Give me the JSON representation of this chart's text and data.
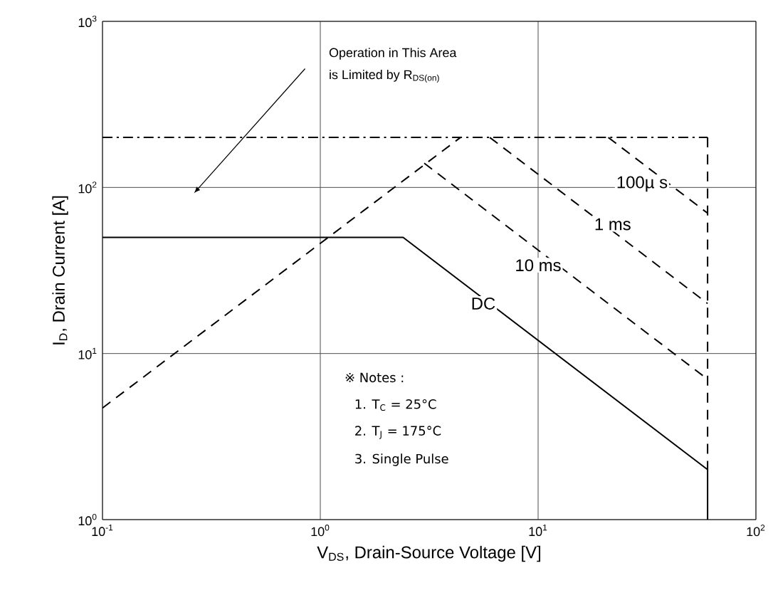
{
  "chart_data": {
    "type": "line",
    "xlabel": "V$_{DS}$, Drain-Source Voltage [V]",
    "ylabel": "I$_{D}$, Drain Current [A]",
    "log": "xy",
    "grid": true,
    "xlim": [
      0.1,
      100
    ],
    "ylim": [
      1,
      1000
    ],
    "xticks": [
      {
        "value": 0.1,
        "label": "10$^{-1}$"
      },
      {
        "value": 1,
        "label": "10$^{0}$"
      },
      {
        "value": 10,
        "label": "10$^{1}$"
      },
      {
        "value": 100,
        "label": "10$^{2}$"
      }
    ],
    "yticks": [
      {
        "value": 1,
        "label": "10$^{0}$"
      },
      {
        "value": 10,
        "label": "10$^{1}$"
      },
      {
        "value": 100,
        "label": "10$^{2}$"
      },
      {
        "value": 1000,
        "label": "10$^{3}$"
      }
    ],
    "series": [
      {
        "color": "#000000",
        "line_style": "dashed",
        "x": [
          0.1,
          4.4
        ],
        "values": [
          4.7,
          200
        ]
      },
      {
        "color": "#000000",
        "line_style": "dashdot",
        "x": [
          0.1,
          60
        ],
        "values": [
          200,
          200
        ]
      },
      {
        "color": "#000000",
        "line_style": "dashed",
        "x": [
          60,
          60
        ],
        "values": [
          200,
          2
        ]
      },
      {
        "color": "#000000",
        "line_style": "dashed",
        "x": [
          21,
          60
        ],
        "values": [
          200,
          70
        ]
      },
      {
        "color": "#000000",
        "line_style": "dashed",
        "x": [
          6,
          60
        ],
        "values": [
          200,
          20
        ]
      },
      {
        "color": "#000000",
        "line_style": "dashed",
        "x": [
          3,
          60
        ],
        "values": [
          140,
          7
        ]
      },
      {
        "color": "#000000",
        "line_style": "solid",
        "x": [
          0.1,
          2.4,
          60,
          60
        ],
        "values": [
          50,
          50,
          2,
          1
        ]
      }
    ],
    "annotations": [
      {
        "text": "100µ s",
        "x": 30,
        "y": 105
      },
      {
        "text": "1 ms",
        "x": 22,
        "y": 60
      },
      {
        "text": "10 ms",
        "x": 10,
        "y": 34
      },
      {
        "text": "DC",
        "x": 5.6,
        "y": 20
      },
      "Operation in This Area",
      "is Limited by R$_{DS(on)}$",
      "※ Notes :",
      "1. T$_{C}$ = 25°C",
      "2. T$_{J}$ = 175°C",
      "3. Single Pulse"
    ]
  }
}
